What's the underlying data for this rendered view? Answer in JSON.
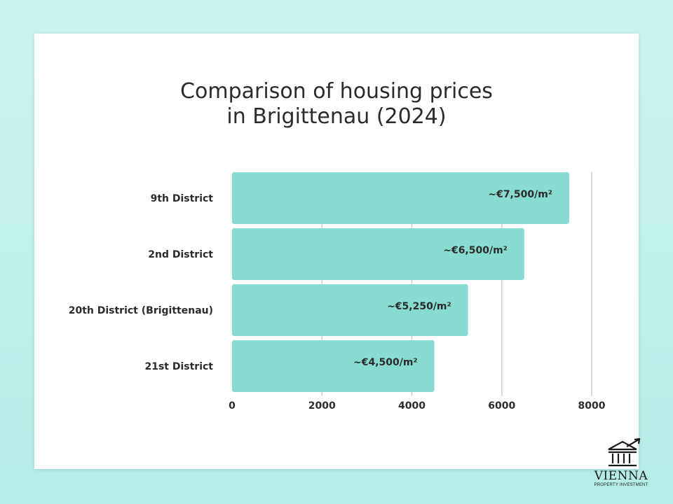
{
  "chart_data": {
    "type": "bar",
    "orientation": "horizontal",
    "title": "Comparison of housing prices in Brigittenau (2024)",
    "title_lines": [
      "Comparison of housing prices",
      "in Brigittenau (2024)"
    ],
    "categories": [
      "9th District",
      "2nd District",
      "20th District (Brigittenau)",
      "21st District"
    ],
    "values": [
      7500,
      6500,
      5250,
      4500
    ],
    "data_labels": [
      "~€7,500/m²",
      "~€6,500/m²",
      "~€5,250/m²",
      "~€4,500/m²"
    ],
    "xlim": [
      0,
      8000
    ],
    "xticks": [
      0,
      2000,
      4000,
      6000,
      8000
    ],
    "tick_labels": [
      "0",
      "2000",
      "4000",
      "6000",
      "8000"
    ],
    "xlabel": "",
    "ylabel": "",
    "grid": true,
    "bar_color": "#88dbd0",
    "grid_color": "#cfcfcf"
  },
  "logo": {
    "name": "VIENNA",
    "tagline": "PROPERTY INVESTMENT"
  }
}
